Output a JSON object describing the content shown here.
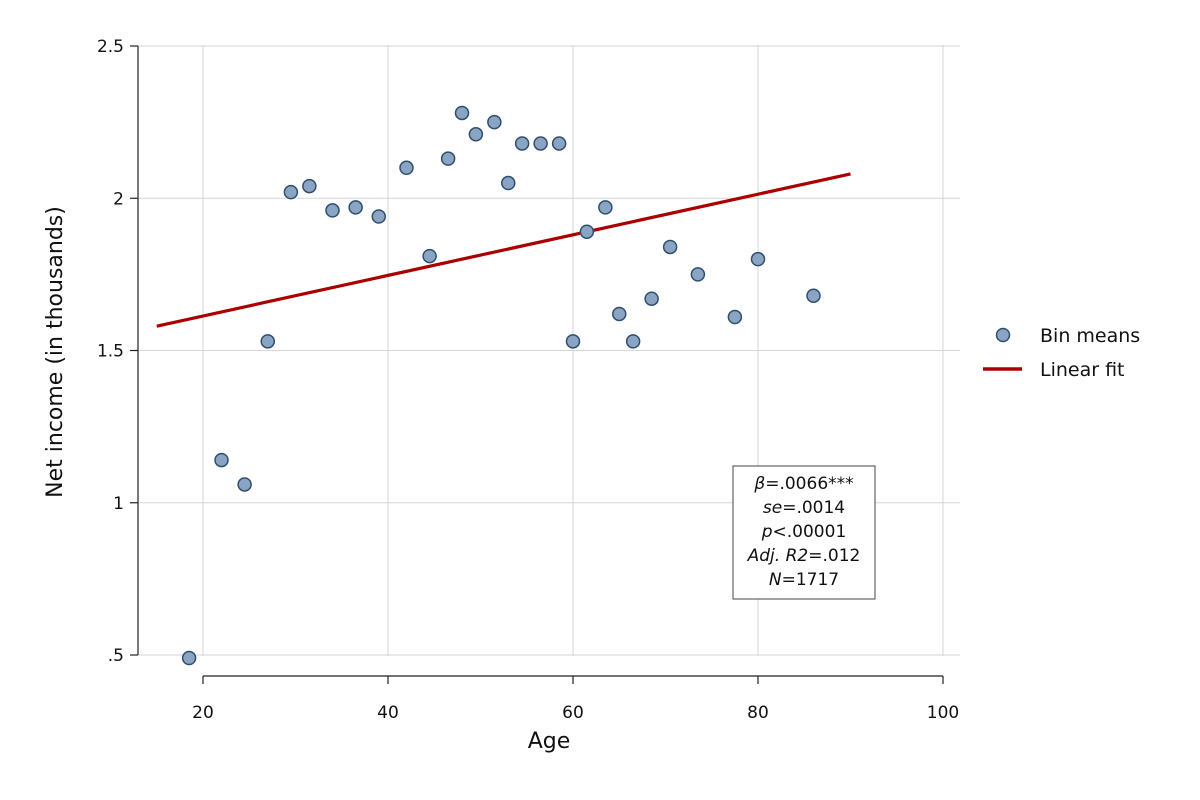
{
  "chart_data": {
    "type": "scatter",
    "xlabel": "Age",
    "ylabel": "Net income (in thousands)",
    "xlim": [
      15,
      100
    ],
    "ylim": [
      0.45,
      2.5
    ],
    "x_ticks": [
      20,
      40,
      60,
      80,
      100
    ],
    "x_tick_labels": [
      "20",
      "40",
      "60",
      "80",
      "100"
    ],
    "y_ticks": [
      0.5,
      1,
      1.5,
      2,
      2.5
    ],
    "y_tick_labels": [
      ".5",
      "1",
      "1.5",
      "2",
      "2.5"
    ],
    "grid": true,
    "legend_position": "right",
    "series": [
      {
        "name": "Bin means",
        "kind": "scatter",
        "color": "#8aa5c4",
        "edge_color": "#2f4e6e",
        "x": [
          18.5,
          22,
          24.5,
          27,
          29.5,
          31.5,
          34,
          36.5,
          39,
          42,
          44.5,
          46.5,
          48,
          49.5,
          51.5,
          53,
          54.5,
          56.5,
          58.5,
          60,
          61.5,
          63.5,
          65,
          66.5,
          68.5,
          70.5,
          73.5,
          77.5,
          80,
          86
        ],
        "y": [
          0.49,
          1.14,
          1.06,
          1.53,
          2.02,
          2.04,
          1.96,
          1.97,
          1.94,
          2.1,
          1.81,
          2.13,
          2.28,
          2.21,
          2.25,
          2.05,
          2.18,
          2.18,
          2.18,
          1.53,
          1.89,
          1.97,
          1.62,
          1.53,
          1.67,
          1.84,
          1.75,
          1.61,
          1.8,
          1.68
        ]
      },
      {
        "name": "Linear fit",
        "kind": "line",
        "color": "#aa0000",
        "x": [
          15,
          90
        ],
        "y": [
          1.58,
          2.08
        ]
      }
    ],
    "annotation": {
      "lines": [
        {
          "italic": "β",
          "rest": "=.0066***"
        },
        {
          "italic": "se",
          "rest": "=.0014"
        },
        {
          "italic": "p",
          "rest": "<.00001"
        },
        {
          "italic": "Adj. R2",
          "rest": "=.012"
        },
        {
          "italic": "N",
          "rest": "=1717"
        }
      ]
    }
  }
}
